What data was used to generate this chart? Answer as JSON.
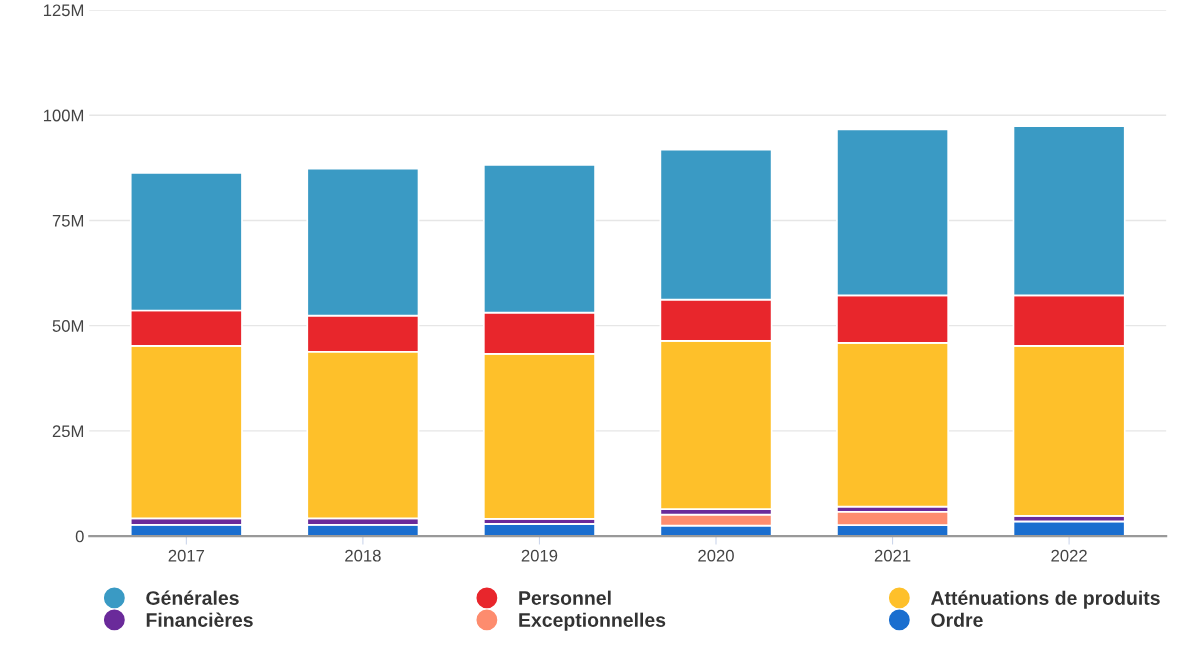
{
  "chart_data": {
    "type": "bar",
    "stacked": true,
    "categories": [
      "2017",
      "2018",
      "2019",
      "2020",
      "2021",
      "2022"
    ],
    "series": [
      {
        "name": "Ordre",
        "color": "#1a6ecf",
        "values": [
          2.7,
          2.7,
          2.9,
          2.5,
          2.6,
          3.5
        ]
      },
      {
        "name": "Exceptionnelles",
        "color": "#fd8c6e",
        "values": [
          0,
          0,
          0,
          2.6,
          3.2,
          0
        ]
      },
      {
        "name": "Financières",
        "color": "#6a2a9a",
        "values": [
          1.5,
          1.5,
          1.2,
          1.3,
          1.2,
          1.3
        ]
      },
      {
        "name": "Atténuations de produits",
        "color": "#fec02a",
        "values": [
          41.0,
          39.6,
          39.2,
          40.0,
          38.9,
          40.4
        ]
      },
      {
        "name": "Personnel",
        "color": "#e8262c",
        "values": [
          8.4,
          8.6,
          9.8,
          9.8,
          11.3,
          12.0
        ]
      },
      {
        "name": "Générales",
        "color": "#3a9ac4",
        "values": [
          32.7,
          34.9,
          35.1,
          35.6,
          39.4,
          40.2
        ]
      }
    ],
    "ylim": [
      0,
      125
    ],
    "yticks": [
      {
        "value": 0,
        "label": "0"
      },
      {
        "value": 25,
        "label": "25M"
      },
      {
        "value": 50,
        "label": "50M"
      },
      {
        "value": 75,
        "label": "75M"
      },
      {
        "value": 100,
        "label": "100M"
      },
      {
        "value": 125,
        "label": "125M"
      }
    ],
    "grid": "y",
    "legend": "bottom",
    "marker": "circle"
  }
}
